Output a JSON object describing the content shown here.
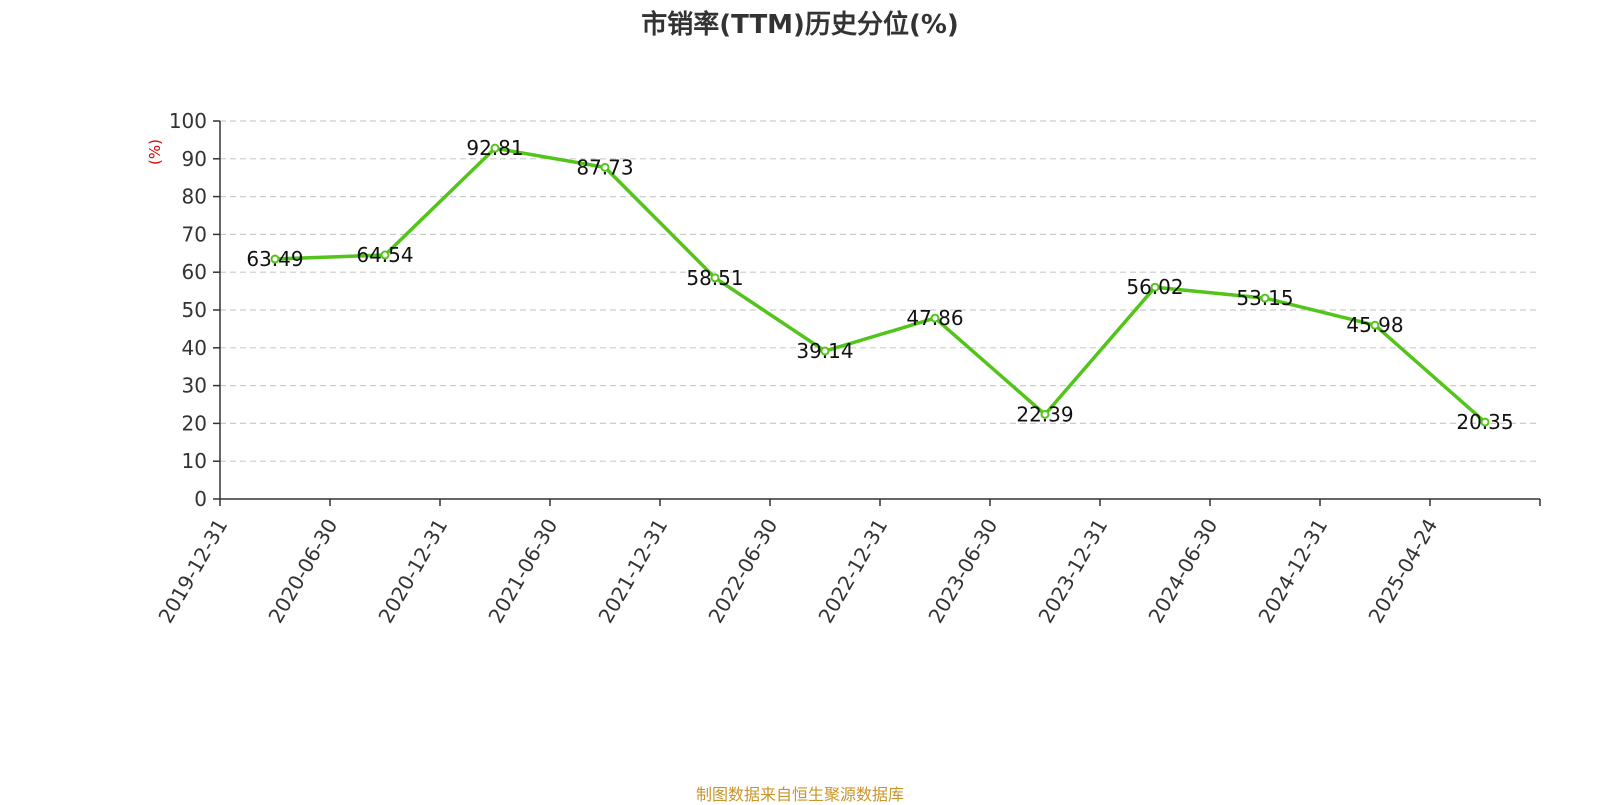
{
  "colors": {
    "line": "#52c41a",
    "ylabel": "#e00000",
    "axis": "#333333",
    "grid": "#cccccc",
    "source": "#c8952a"
  },
  "chart_data": {
    "type": "line",
    "title": "市销率(TTM)历史分位(%)",
    "ylabel": "(%)",
    "xlabel": "",
    "ylim": [
      0,
      100
    ],
    "yticks": [
      0,
      10,
      20,
      30,
      40,
      50,
      60,
      70,
      80,
      90,
      100
    ],
    "grid": true,
    "categories": [
      "2019-12-31",
      "2020-06-30",
      "2020-12-31",
      "2021-06-30",
      "2021-12-31",
      "2022-06-30",
      "2022-12-31",
      "2023-06-30",
      "2023-12-31",
      "2024-06-30",
      "2024-12-31",
      "2025-04-24"
    ],
    "series": [
      {
        "values": [
          63.49,
          64.54,
          92.81,
          87.73,
          58.51,
          39.14,
          47.86,
          22.39,
          56.02,
          53.15,
          45.98,
          20.35
        ]
      }
    ],
    "data_labels": [
      "63.49",
      "64.54",
      "92.81",
      "87.73",
      "58.51",
      "39.14",
      "47.86",
      "22.39",
      "56.02",
      "53.15",
      "45.98",
      "20.35"
    ]
  },
  "footer": {
    "source": "制图数据来自恒生聚源数据库"
  }
}
